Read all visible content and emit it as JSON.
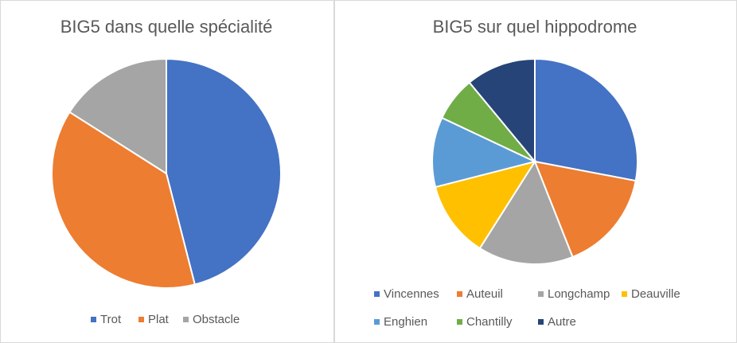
{
  "chart_data": [
    {
      "type": "pie",
      "title": "BIG5 dans quelle spécialité",
      "categories": [
        "Trot",
        "Plat",
        "Obstacle"
      ],
      "values": [
        46,
        38,
        16
      ],
      "colors": [
        "#4472c4",
        "#ed7d31",
        "#a5a5a5"
      ]
    },
    {
      "type": "pie",
      "title": "BIG5 sur quel hippodrome",
      "categories": [
        "Vincennes",
        "Auteuil",
        "Longchamp",
        "Deauville",
        "Enghien",
        "Chantilly",
        "Autre"
      ],
      "values": [
        28,
        16,
        15,
        12,
        11,
        7,
        11
      ],
      "colors": [
        "#4472c4",
        "#ed7d31",
        "#a5a5a5",
        "#ffc000",
        "#5b9bd5",
        "#70ad47",
        "#264478"
      ]
    }
  ]
}
